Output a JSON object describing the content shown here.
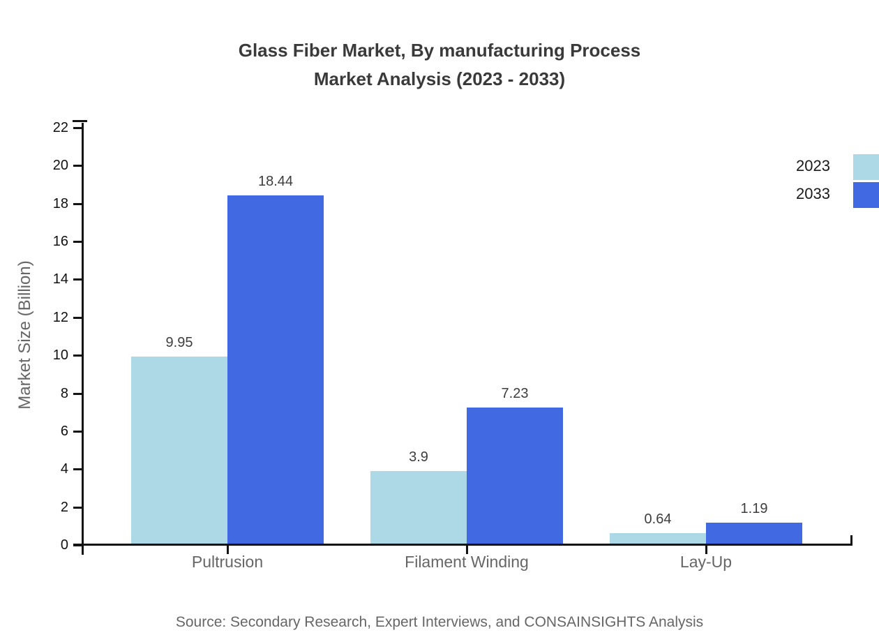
{
  "title": {
    "line1": "Glass Fiber Market, By manufacturing Process",
    "line2": "Market Analysis (2023 - 2033)"
  },
  "source": "Source: Secondary Research, Expert Interviews, and CONSAINSIGHTS Analysis",
  "legend": {
    "items": [
      {
        "label": "2023",
        "color": "#ADD8E6"
      },
      {
        "label": "2033",
        "color": "#4169E1"
      }
    ]
  },
  "chart_data": {
    "type": "bar",
    "title": "Glass Fiber Market, By manufacturing Process Market Analysis (2023 - 2033)",
    "categories": [
      "Pultrusion",
      "Filament Winding",
      "Lay-Up"
    ],
    "series": [
      {
        "name": "2023",
        "color": "#ADD8E6",
        "values": [
          9.95,
          3.9,
          0.64
        ],
        "labels": [
          "9.95",
          "3.9",
          "0.64"
        ]
      },
      {
        "name": "2033",
        "color": "#4169E1",
        "values": [
          18.44,
          7.23,
          1.19
        ],
        "labels": [
          "18.44",
          "7.23",
          "1.19"
        ]
      }
    ],
    "xlabel": "",
    "ylabel": "Market Size (Billion)",
    "ylim": [
      0,
      22
    ],
    "ytick_step": 2,
    "yticks": [
      0,
      2,
      4,
      6,
      8,
      10,
      12,
      14,
      16,
      18,
      20,
      22
    ],
    "grid": false,
    "legend_position": "right"
  }
}
